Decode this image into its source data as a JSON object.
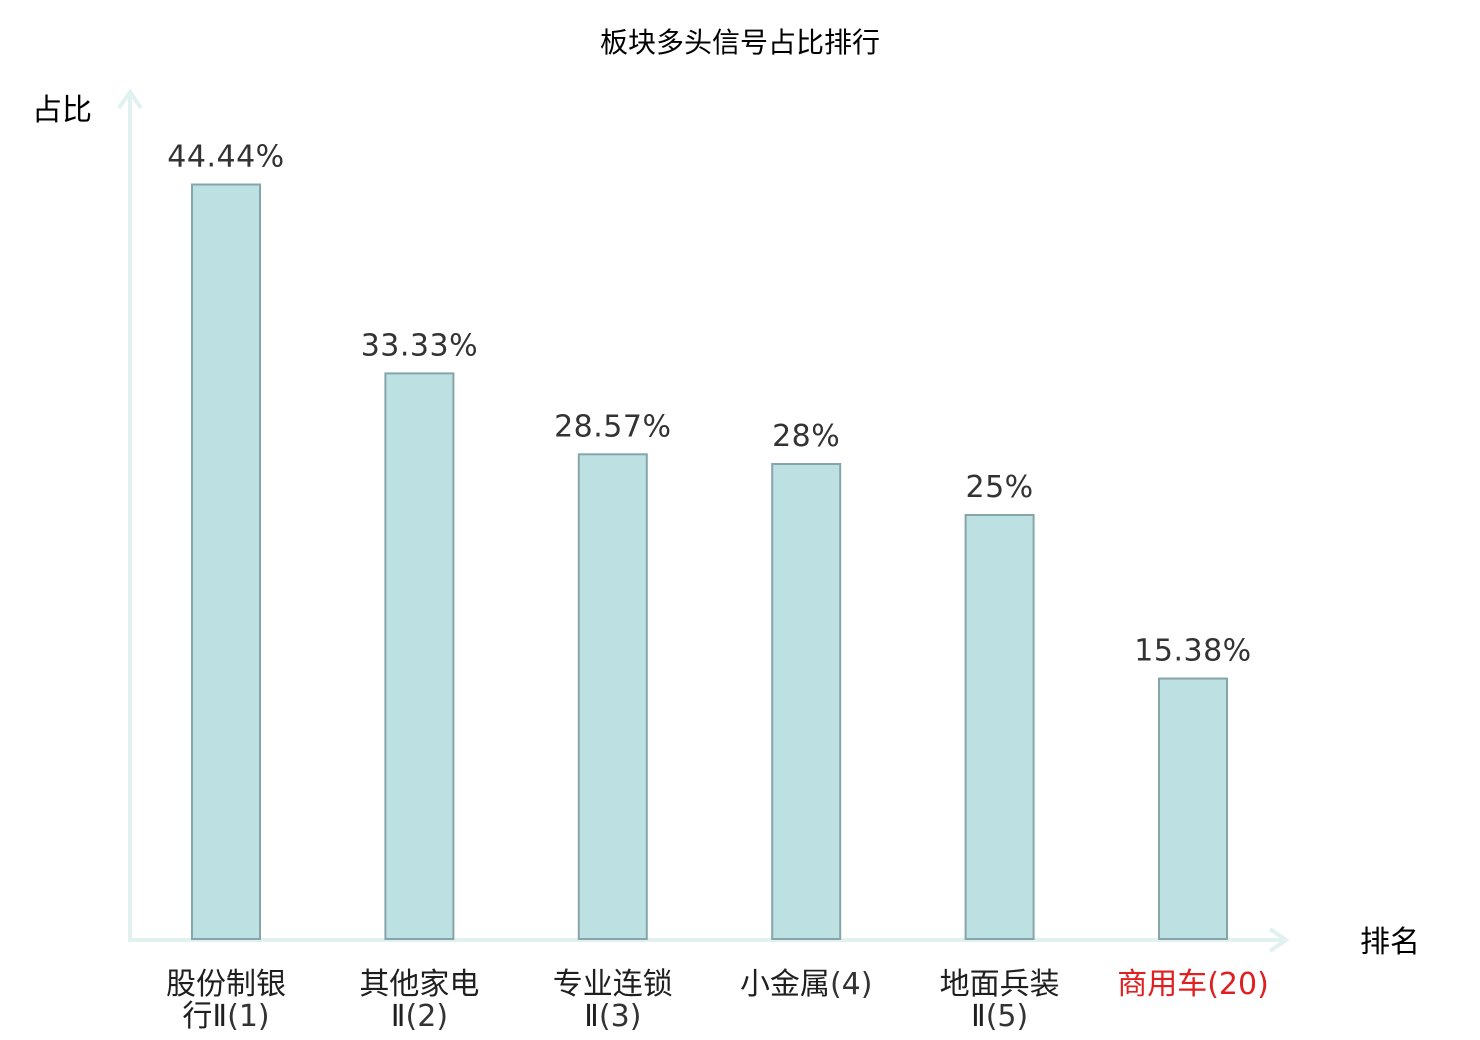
{
  "chart_data": {
    "type": "bar",
    "title": "板块多头信号占比排行",
    "ylabel": "占比",
    "xlabel": "排名",
    "categories": [
      {
        "name": "股份制银行Ⅱ",
        "rank": "(1)",
        "line1": "股份制银",
        "line2_name": "行Ⅱ",
        "highlight": false
      },
      {
        "name": "其他家电Ⅱ",
        "rank": "(2)",
        "line1": "其他家电",
        "line2_name": "Ⅱ",
        "highlight": false
      },
      {
        "name": "专业连锁Ⅱ",
        "rank": "(3)",
        "line1": "专业连锁",
        "line2_name": "Ⅱ",
        "highlight": false
      },
      {
        "name": "小金属",
        "rank": "(4)",
        "line1": "小金属",
        "line2_name": "",
        "highlight": false
      },
      {
        "name": "地面兵装Ⅱ",
        "rank": "(5)",
        "line1": "地面兵装",
        "line2_name": "Ⅱ",
        "highlight": false
      },
      {
        "name": "商用车",
        "rank": "(20)",
        "line1": "商用车",
        "line2_name": "",
        "highlight": true
      }
    ],
    "values": [
      44.44,
      33.33,
      28.57,
      28,
      25,
      15.38
    ],
    "value_labels": [
      "44.44%",
      "33.33%",
      "28.57%",
      "28%",
      "25%",
      "15.38%"
    ],
    "ylim": [
      0,
      50
    ],
    "grid": false,
    "colors": {
      "bar_fill": "#bde0e3",
      "bar_stroke": "#86a5a8",
      "axis": "#e0f1f0",
      "highlight": "#e02020",
      "text": "#333333"
    }
  }
}
